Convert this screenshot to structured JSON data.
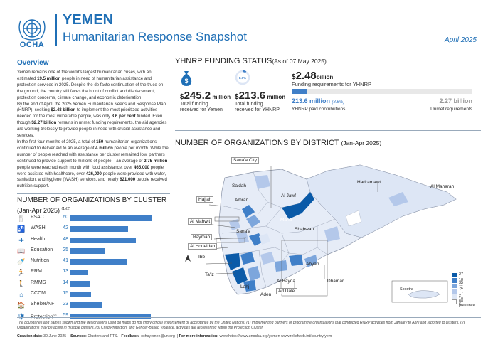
{
  "header": {
    "org": "OCHA",
    "country": "YEMEN",
    "subtitle": "Humanitarian Response Snapshot",
    "date": "April 2025"
  },
  "overview": {
    "title": "Overview",
    "paragraphs": [
      [
        {
          "t": "Yemen remains one of the world's largest humanitarian crises, with an estimated ",
          "b": false
        },
        {
          "t": "19.5 million",
          "b": true
        },
        {
          "t": " people in need of humanitarian assistance and protection services in 2025. Despite the de facto continuation of the truce on the ground, the country still faces the brunt of conflict and displacement, protection concerns, climate change, and economic deterioration.",
          "b": false
        }
      ],
      [
        {
          "t": "By the end of April, the 2025 Yemen Humanitarian Needs and Response Plan (HNRP), seeking ",
          "b": false
        },
        {
          "t": "$2.48 billion",
          "b": true
        },
        {
          "t": " to implement the most prioritized activities needed for the most vulnerable people, was only ",
          "b": false
        },
        {
          "t": "8.6 per cent",
          "b": true
        },
        {
          "t": " funded. Even though ",
          "b": false
        },
        {
          "t": "$2.27 billion",
          "b": true
        },
        {
          "t": " remains in unmet funding requirements, the aid agencies are working tirelessly to provide people in need with crucial assistance and services.",
          "b": false
        }
      ],
      [
        {
          "t": "In the first four months of 2025, a total of ",
          "b": false
        },
        {
          "t": "150",
          "b": true
        },
        {
          "t": " humanitarian organizations continued to deliver aid to an average of ",
          "b": false
        },
        {
          "t": "4 million",
          "b": true
        },
        {
          "t": " people per month. While the number of people reached with assistance per cluster remained low, partners continued to provide support to millions of people – an average of ",
          "b": false
        },
        {
          "t": "2.75 million",
          "b": true
        },
        {
          "t": " people were reached each month with food assistance, over ",
          "b": false
        },
        {
          "t": "465,000",
          "b": true
        },
        {
          "t": " people were assisted with healthcare, over ",
          "b": false
        },
        {
          "t": "426,000",
          "b": true
        },
        {
          "t": " people were provided with water, sanitation, and hygiene (WASH) services, and nearly ",
          "b": false
        },
        {
          "t": "621,000",
          "b": true
        },
        {
          "t": " people received nutrition support.",
          "b": false
        }
      ]
    ]
  },
  "clusters": {
    "title": "NUMBER OF ORGANIZATIONS BY CLUSTER",
    "subtitle": "(Jan-Apr 2025)",
    "subtitle_note": "(1)(2)",
    "max": 60,
    "items": [
      {
        "name": "FSAC",
        "value": "60",
        "v": 60,
        "icon": "food-security-icon",
        "glyph": "🍴"
      },
      {
        "name": "WASH",
        "value": "42",
        "v": 42,
        "icon": "water-tap-icon",
        "glyph": "🚰"
      },
      {
        "name": "Health",
        "value": "48",
        "v": 48,
        "icon": "health-icon",
        "glyph": "✚"
      },
      {
        "name": "Education",
        "value": "25",
        "v": 25,
        "icon": "education-icon",
        "glyph": "📖"
      },
      {
        "name": "Nutrition",
        "value": "41",
        "v": 41,
        "icon": "nutrition-icon",
        "glyph": "🍼"
      },
      {
        "name": "RRM",
        "value": "13",
        "v": 13,
        "icon": "rapid-response-icon",
        "glyph": "🏃"
      },
      {
        "name": "RMMS",
        "value": "14",
        "v": 14,
        "icon": "migrants-icon",
        "glyph": "🚶"
      },
      {
        "name": "CCCM",
        "value": "15",
        "v": 15,
        "icon": "camp-management-icon",
        "glyph": "⌂"
      },
      {
        "name": "Shelter/NFI",
        "value": "23",
        "v": 23,
        "icon": "shelter-icon",
        "glyph": "🏠"
      },
      {
        "name": "Protection",
        "note": "(3)",
        "value": "59",
        "v": 59,
        "icon": "protection-icon",
        "glyph": "🛡"
      }
    ]
  },
  "funding": {
    "title": "YHNRP FUNDING STATUS",
    "title_note": "(As of 07 May 2025)",
    "total": {
      "currency": "$",
      "number": "245.2",
      "unit": " million",
      "label": [
        "Total funding",
        "received for Yemen"
      ]
    },
    "yhnrp": {
      "currency": "$",
      "number": "213.6",
      "unit": " million",
      "label": [
        "Total funding",
        "received for YHNRP"
      ],
      "donut_label": "8.6%"
    },
    "requirement": {
      "currency": "$",
      "number": "2.48",
      "unit": "billion",
      "label": "Funding requirements for YHNRP"
    },
    "paid": {
      "value": "213.6 million",
      "pct": "(8.6%)",
      "label": "YHNRP paid contributions",
      "fraction": 0.086
    },
    "unmet": {
      "value": "2.27 billion",
      "label": "Unmet requirements"
    }
  },
  "map": {
    "title": "NUMBER OF ORGANIZATIONS BY DISTRICT",
    "title_note": "(Jan-Apr 2025)",
    "labels": {
      "sanaa_city": "Sana'a City",
      "sadah": "Sa'dah",
      "hajjah": "Hajjah",
      "amran": "Amran",
      "al_jawf": "Al Jawf",
      "hadramawt": "Hadramawt",
      "al_maharah": "Al Maharah",
      "al_mahwit": "Al Mahwit",
      "marib": "Marib",
      "shabwah": "Shabwah",
      "sanaa": "Sana'a",
      "raymah": "Raymah",
      "al_hodeidah": "Al Hodeidah",
      "ibb": "Ibb",
      "taiz": "Ta'iz",
      "abyan": "Abyan",
      "lahj": "Lahj",
      "al_bayda": "Al Bayda",
      "dhamar": "Dhamar",
      "ad_dale": "Ad Dale'",
      "aden": "Aden",
      "socotra": "Socotra"
    },
    "legend": [
      {
        "label": "27 - 35",
        "color": "#0a5aa8"
      },
      {
        "label": "18 - 26",
        "color": "#3f7fc8"
      },
      {
        "label": "11 - 17",
        "color": "#7da6dc"
      },
      {
        "label": "7 - 10",
        "color": "#b4c8ea"
      },
      {
        "label": "2 - 6",
        "color": "#dde6f5"
      },
      {
        "label": "no presence",
        "color": "#ffffff"
      }
    ]
  },
  "footer": {
    "disclaimer": "The boundaries and names shown and the designations used on maps do not imply official endorsement or acceptance by the United Nations. (1) Implementing partners or programme organizations that conducted HNRP activities from January to April and reported to clusters. (2) Organizations may be active in multiple clusters. (3) Child Protection, and Gender-Based Violence, activities are represented within the Protection Cluster.",
    "creation_label": "Creation date:",
    "creation_value": "30 June 2025",
    "sources_label": "Sources:",
    "sources_value": "Clusters and FTS.",
    "feedback_label": "Feedback:",
    "feedback_value": "ochayemen@un.org",
    "info_label": "For more information:",
    "info_value": "www.https://www.unocha.org/yemen   www.reliefweb.int/country/yem"
  }
}
